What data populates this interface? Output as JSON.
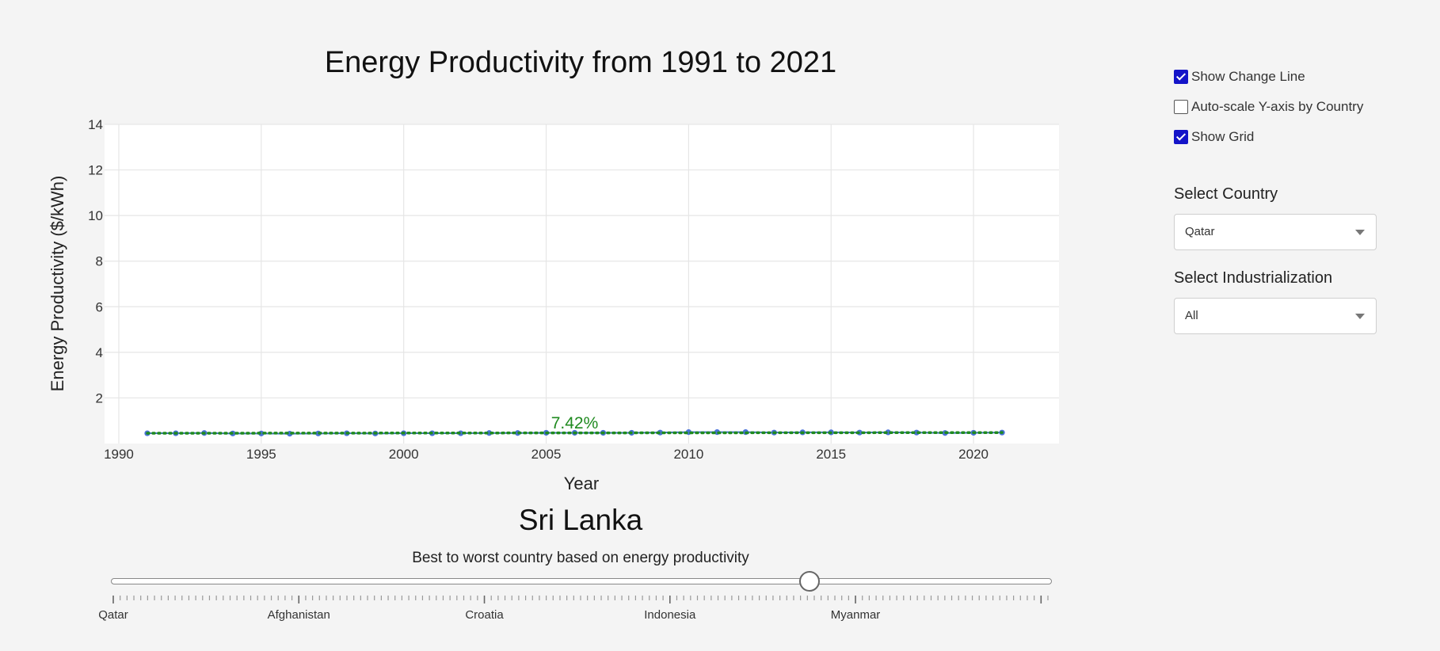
{
  "chart": {
    "title": "Energy Productivity from 1991 to 2021",
    "change_label": "7.42%"
  },
  "chart_data": {
    "type": "line",
    "title": "Energy Productivity from 1991 to 2021",
    "xlabel": "Year",
    "ylabel": "Energy Productivity ($/kWh)",
    "xlim": [
      1989.5,
      2023
    ],
    "ylim": [
      0,
      14
    ],
    "xticks": [
      1990,
      1995,
      2000,
      2005,
      2010,
      2015,
      2020
    ],
    "yticks": [
      2,
      4,
      6,
      8,
      10,
      12,
      14
    ],
    "grid": true,
    "x": [
      1991,
      1992,
      1993,
      1994,
      1995,
      1996,
      1997,
      1998,
      1999,
      2000,
      2001,
      2002,
      2003,
      2004,
      2005,
      2006,
      2007,
      2008,
      2009,
      2010,
      2011,
      2012,
      2013,
      2014,
      2015,
      2016,
      2017,
      2018,
      2019,
      2020,
      2021
    ],
    "series": [
      {
        "values": [
          0.45,
          0.45,
          0.46,
          0.44,
          0.44,
          0.43,
          0.44,
          0.45,
          0.44,
          0.45,
          0.45,
          0.45,
          0.46,
          0.46,
          0.47,
          0.47,
          0.47,
          0.47,
          0.48,
          0.5,
          0.5,
          0.5,
          0.48,
          0.49,
          0.49,
          0.48,
          0.49,
          0.48,
          0.46,
          0.47,
          0.48
        ],
        "color": "#4a72d8"
      },
      {
        "values": [
          0.45,
          0.48
        ],
        "x": [
          1991,
          2021
        ],
        "color": "#1f8a1f",
        "style": "dotted"
      }
    ],
    "annotations": [
      {
        "text": "7.42%",
        "x": 2006,
        "color": "#1f8a1f"
      }
    ]
  },
  "controls": {
    "show_change_line": {
      "label": "Show Change Line",
      "checked": true
    },
    "auto_scale": {
      "label": "Auto-scale Y-axis by Country",
      "checked": false
    },
    "show_grid": {
      "label": "Show Grid",
      "checked": true
    },
    "country": {
      "label": "Select Country",
      "value": "Qatar"
    },
    "industrialization": {
      "label": "Select Industrialization",
      "value": "All"
    }
  },
  "slider": {
    "country_name": "Sri Lanka",
    "caption": "Best to worst country based on energy productivity",
    "position": 0.745,
    "labels": [
      "Qatar",
      "Afghanistan",
      "Croatia",
      "Indonesia",
      "Myanmar"
    ]
  }
}
